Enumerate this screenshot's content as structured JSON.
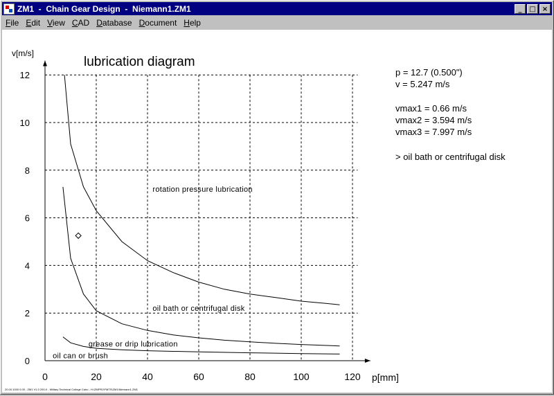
{
  "window": {
    "title": "ZM1  -  Chain Gear Design  -  Niemann1.ZM1",
    "buttons": {
      "minimize": "_",
      "maximize": "□",
      "close": "×"
    }
  },
  "menu": [
    "File",
    "Edit",
    "View",
    "CAD",
    "Database",
    "Document",
    "Help"
  ],
  "info": {
    "pitch": "p = 12.7 (0.500\")",
    "velocity": "v = 5.247 m/s",
    "vmax1": "vmax1 = 0.66 m/s",
    "vmax2": "vmax2 = 3.594 m/s",
    "vmax3": "vmax3 = 7.997 m/s",
    "recommendation": "> oil bath or centrifugal disk"
  },
  "footer_text": "20.00.1000 0.00 - ZM1 V1.0 200-0 - Military Technical College Cairo - H:\\ZMPRJ\\FMTS\\ZM1\\Niemann1.ZM1",
  "chart_data": {
    "type": "line",
    "title": "lubrication diagram",
    "xlabel": "p[mm]",
    "ylabel": "v[m/s]",
    "xlim": [
      0,
      125
    ],
    "ylim": [
      0,
      12.5
    ],
    "xticks": [
      0,
      20,
      40,
      60,
      80,
      100,
      120
    ],
    "yticks": [
      0,
      2,
      4,
      6,
      8,
      10,
      12
    ],
    "grid": true,
    "series": [
      {
        "x": [
          7.6,
          10,
          15,
          20,
          30,
          40,
          50,
          60,
          70,
          80,
          90,
          100,
          110,
          115
        ],
        "y": [
          12.0,
          9.1,
          7.3,
          6.3,
          5.0,
          4.2,
          3.7,
          3.3,
          3.0,
          2.8,
          2.65,
          2.5,
          2.4,
          2.35
        ]
      },
      {
        "x": [
          7,
          10,
          15,
          20,
          30,
          40,
          50,
          60,
          70,
          80,
          90,
          100,
          110,
          115
        ],
        "y": [
          7.3,
          4.3,
          2.8,
          2.1,
          1.55,
          1.27,
          1.08,
          0.96,
          0.86,
          0.79,
          0.73,
          0.68,
          0.64,
          0.62
        ]
      },
      {
        "x": [
          7,
          10,
          15,
          20,
          30,
          40,
          60,
          80,
          100,
          115
        ],
        "y": [
          1.0,
          0.75,
          0.6,
          0.52,
          0.46,
          0.42,
          0.37,
          0.33,
          0.3,
          0.28
        ]
      }
    ],
    "regions": [
      {
        "label": "rotation pressure lubrication",
        "x": 42,
        "y": 7.1
      },
      {
        "label": "oil bath or centrifugal disk",
        "x": 42,
        "y": 2.1
      },
      {
        "label": "grease or drip lubrication",
        "x": 17,
        "y": 0.6
      },
      {
        "label": "oil can or brush",
        "x": 3,
        "y": 0.1
      }
    ],
    "operating_point": {
      "x": 13,
      "y": 5.25
    }
  }
}
